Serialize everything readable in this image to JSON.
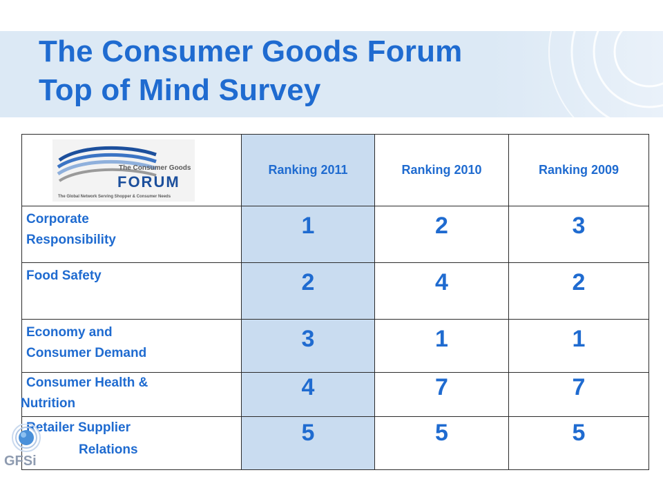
{
  "slide": {
    "title_line1": "The Consumer Goods Forum",
    "title_line2": "Top of Mind Survey"
  },
  "logo": {
    "line1": "The Consumer Goods",
    "line2": "FORUM",
    "tagline": "The Global Network Serving Shopper & Consumer Needs"
  },
  "gfsi_logo": {
    "text": "GFSi"
  },
  "table": {
    "headers": [
      "Ranking 2011",
      "Ranking 2010",
      "Ranking 2009"
    ],
    "rows": [
      {
        "label_line1": "Corporate",
        "label_line2": "Responsibility",
        "values": [
          "1",
          "2",
          "3"
        ]
      },
      {
        "label_line1": "Food Safety",
        "label_line2": "",
        "values": [
          "2",
          "4",
          "2"
        ]
      },
      {
        "label_line1": "Economy and",
        "label_line2": "Consumer Demand",
        "values": [
          "3",
          "1",
          "1"
        ]
      },
      {
        "label_line1": "Consumer Health &",
        "label_line2": "Nutrition",
        "values": [
          "4",
          "7",
          "7"
        ]
      },
      {
        "label_line1": "Retailer Supplier",
        "label_line2": "Relations",
        "values": [
          "5",
          "5",
          "5"
        ]
      }
    ]
  },
  "colors": {
    "title": "#1f6bd0",
    "band": "#dce9f5",
    "highlight_column": "#c9dcf0",
    "logo_blue": "#1c4f9c",
    "logo_grey": "#5a5a5a"
  }
}
